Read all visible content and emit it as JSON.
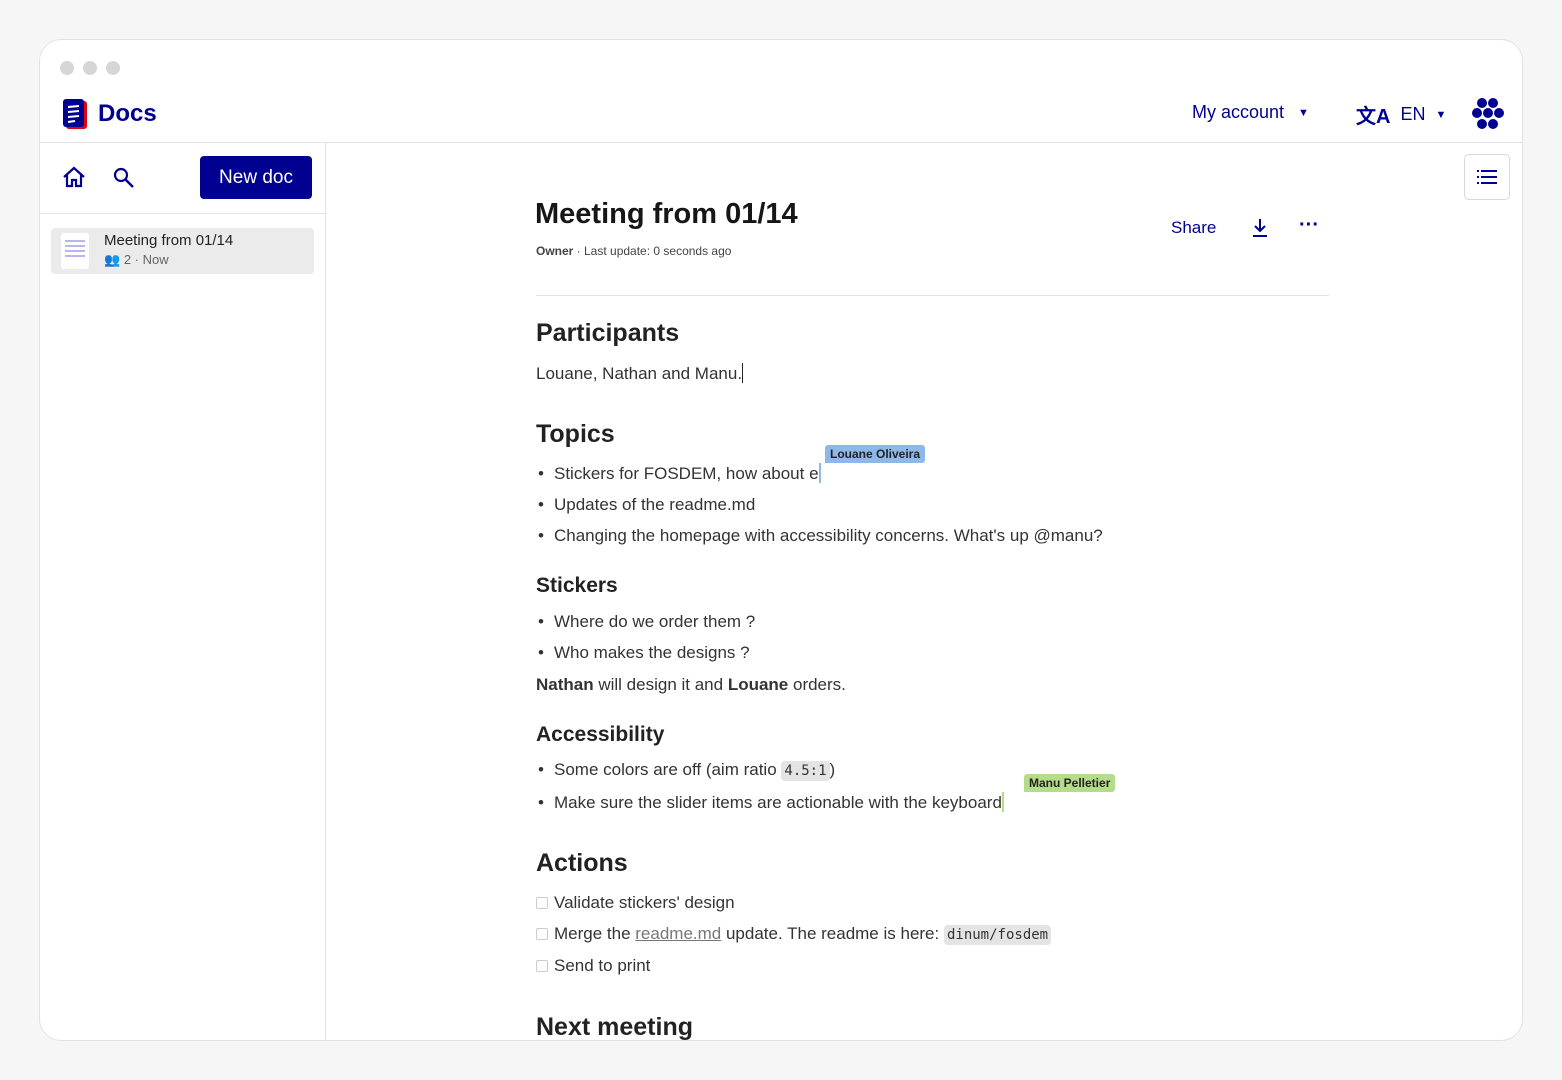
{
  "app": {
    "name": "Docs"
  },
  "header": {
    "account": "My account",
    "language": "EN"
  },
  "sidebar": {
    "new_doc": "New doc",
    "docs": [
      {
        "title": "Meeting from 01/14",
        "participants": "2",
        "time": "Now"
      }
    ]
  },
  "doc": {
    "title": "Meeting from 01/14",
    "meta_owner": "Owner",
    "meta_rest": " · Last update: 0 seconds ago",
    "share": "Share",
    "participants_h": "Participants",
    "participants_text": "Louane, Nathan and Manu.",
    "topics_h": "Topics",
    "topics": [
      "Stickers for FOSDEM, how about e",
      "Updates of the readme.md",
      "Changing the homepage with accessibility concerns. What's up @manu?"
    ],
    "stickers_h": "Stickers",
    "stickers": [
      "Where do we order them ?",
      "Who makes the designs ?"
    ],
    "stickers_note": {
      "b1": "Nathan",
      "t1": " will design it and ",
      "b2": "Louane",
      "t2": " orders."
    },
    "access_h": "Accessibility",
    "access1_pre": "Some colors are off (aim ratio ",
    "access1_code": "4.5:1",
    "access1_post": ")",
    "access2": "Make sure the slider items are actionable with the keyboard",
    "actions_h": "Actions",
    "action1": "Validate stickers' design",
    "action2_pre": "Merge the ",
    "action2_link": "readme.md",
    "action2_mid": " update. The readme is here: ",
    "action2_code": "dinum/fosdem",
    "action3": "Send to print",
    "next_h": "Next meeting"
  },
  "collaborators": [
    {
      "name": "Louane Oliveira",
      "color": "#8fb8ea"
    },
    {
      "name": "Manu Pelletier",
      "color": "#b5dc8a"
    }
  ],
  "colors": {
    "brand": "#000091"
  }
}
